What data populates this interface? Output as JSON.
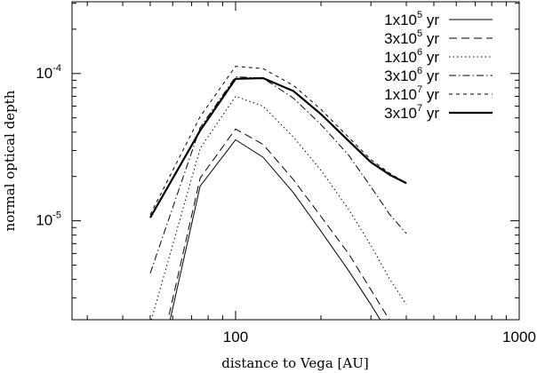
{
  "chart_data": {
    "type": "line",
    "xlabel": "distance to Vega [AU]",
    "ylabel": "normal optical depth",
    "xscale": "log",
    "yscale": "log",
    "xlim": [
      26.5,
      1000
    ],
    "ylim": [
      2.13e-06,
      0.000307
    ],
    "grid": false,
    "legend_position": "top-right",
    "x_ticks": [
      {
        "value": 100,
        "label": "100"
      },
      {
        "value": 1000,
        "label": "1000"
      }
    ],
    "y_ticks": [
      {
        "value": 1e-05,
        "base": "10",
        "exp": "-5"
      },
      {
        "value": 0.0001,
        "base": "10",
        "exp": "-4"
      }
    ],
    "series": [
      {
        "name": "1x10^5 yr",
        "legend": {
          "mantissa": "1x10",
          "exp": "5",
          "unit": " yr"
        },
        "style": "solid",
        "width": 1,
        "points": [
          [
            58,
            1.9e-06
          ],
          [
            75,
            1.72e-05
          ],
          [
            100,
            3.55e-05
          ],
          [
            125,
            2.7e-05
          ],
          [
            160,
            1.55e-05
          ],
          [
            200,
            8.5e-06
          ],
          [
            250,
            4.6e-06
          ],
          [
            300,
            2.7e-06
          ],
          [
            330,
            2e-06
          ]
        ]
      },
      {
        "name": "3x10^5 yr",
        "legend": {
          "mantissa": "3x10",
          "exp": "5",
          "unit": " yr"
        },
        "style": "dashed",
        "width": 1,
        "points": [
          [
            57,
            1.9e-06
          ],
          [
            75,
            1.95e-05
          ],
          [
            100,
            4.2e-05
          ],
          [
            125,
            3.3e-05
          ],
          [
            160,
            1.9e-05
          ],
          [
            200,
            1.07e-05
          ],
          [
            250,
            6e-06
          ],
          [
            300,
            3.4e-06
          ],
          [
            350,
            2.1e-06
          ]
        ]
      },
      {
        "name": "1x10^6 yr",
        "legend": {
          "mantissa": "1x10",
          "exp": "6",
          "unit": " yr"
        },
        "style": "dotted",
        "width": 1,
        "points": [
          [
            50,
            2e-06
          ],
          [
            75,
            3.1e-05
          ],
          [
            100,
            7e-05
          ],
          [
            125,
            6e-05
          ],
          [
            160,
            3.7e-05
          ],
          [
            200,
            2.2e-05
          ],
          [
            250,
            1.2e-05
          ],
          [
            300,
            6.8e-06
          ],
          [
            350,
            4e-06
          ],
          [
            400,
            2.7e-06
          ]
        ]
      },
      {
        "name": "3x10^6 yr",
        "legend": {
          "mantissa": "3x10",
          "exp": "6",
          "unit": " yr"
        },
        "style": "dashdot",
        "width": 1,
        "points": [
          [
            50,
            4.4e-06
          ],
          [
            75,
            4.3e-05
          ],
          [
            100,
            9.5e-05
          ],
          [
            125,
            9.3e-05
          ],
          [
            160,
            6.8e-05
          ],
          [
            200,
            4.5e-05
          ],
          [
            250,
            2.8e-05
          ],
          [
            300,
            1.7e-05
          ],
          [
            350,
            1.1e-05
          ],
          [
            400,
            8.2e-06
          ]
        ]
      },
      {
        "name": "1x10^7 yr",
        "legend": {
          "mantissa": "1x10",
          "exp": "7",
          "unit": " yr"
        },
        "style": "shortdash",
        "width": 1,
        "points": [
          [
            50,
            1.1e-05
          ],
          [
            75,
            5.1e-05
          ],
          [
            100,
            0.000112
          ],
          [
            125,
            0.000108
          ],
          [
            160,
            8.3e-05
          ],
          [
            200,
            5.7e-05
          ],
          [
            250,
            3.7e-05
          ],
          [
            300,
            2.6e-05
          ],
          [
            350,
            2.1e-05
          ],
          [
            400,
            1.8e-05
          ]
        ]
      },
      {
        "name": "3x10^7 yr",
        "legend": {
          "mantissa": "3x10",
          "exp": "7",
          "unit": " yr"
        },
        "style": "solid",
        "width": 2.2,
        "points": [
          [
            50,
            1.05e-05
          ],
          [
            75,
            4.1e-05
          ],
          [
            100,
            9.2e-05
          ],
          [
            125,
            9.3e-05
          ],
          [
            160,
            7.6e-05
          ],
          [
            200,
            5.3e-05
          ],
          [
            250,
            3.5e-05
          ],
          [
            300,
            2.5e-05
          ],
          [
            350,
            2.05e-05
          ],
          [
            400,
            1.8e-05
          ]
        ]
      }
    ]
  }
}
